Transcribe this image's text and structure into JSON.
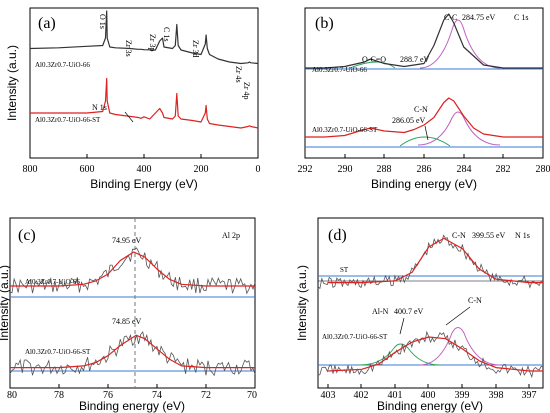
{
  "chart_data": [
    {
      "type": "line",
      "panel_label": "(a)",
      "xlabel": "Binding Energy (eV)",
      "ylabel": "Intensity (a.u.)",
      "xlim": [
        800,
        0
      ],
      "x_ticks": [
        "800",
        "600",
        "400",
        "200",
        "0"
      ],
      "series": [
        {
          "name": "Al0.3Zr0.7-UiO-66",
          "color": "#333333",
          "x": [
            800,
            700,
            600,
            545,
            535,
            531,
            529,
            520,
            500,
            450,
            420,
            410,
            400,
            360,
            345,
            335,
            330,
            300,
            290,
            285,
            280,
            270,
            230,
            200,
            185,
            182,
            178,
            170,
            140,
            100,
            60,
            35,
            30,
            25,
            0
          ],
          "y": [
            0.73,
            0.735,
            0.745,
            0.75,
            0.8,
            0.98,
            0.8,
            0.74,
            0.735,
            0.73,
            0.725,
            0.725,
            0.722,
            0.72,
            0.78,
            0.8,
            0.74,
            0.73,
            0.75,
            0.89,
            0.75,
            0.72,
            0.7,
            0.69,
            0.76,
            0.82,
            0.73,
            0.69,
            0.66,
            0.64,
            0.63,
            0.635,
            0.64,
            0.635,
            0.63
          ]
        },
        {
          "name": "Al0.3Zr0.7-UiO-66-ST",
          "color": "#dd2222",
          "x": [
            800,
            700,
            600,
            545,
            535,
            531,
            529,
            520,
            500,
            420,
            410,
            400,
            380,
            345,
            335,
            330,
            300,
            290,
            285,
            280,
            270,
            230,
            200,
            185,
            182,
            178,
            170,
            140,
            100,
            60,
            35,
            30,
            25,
            0
          ],
          "y": [
            0.3,
            0.3,
            0.3,
            0.31,
            0.38,
            0.53,
            0.38,
            0.3,
            0.29,
            0.27,
            0.265,
            0.275,
            0.26,
            0.33,
            0.3,
            0.27,
            0.26,
            0.28,
            0.43,
            0.28,
            0.26,
            0.25,
            0.24,
            0.3,
            0.35,
            0.26,
            0.23,
            0.22,
            0.21,
            0.2,
            0.21,
            0.215,
            0.21,
            0.2
          ]
        }
      ],
      "annotations": [
        "O 1s",
        "Zr 3s",
        "Zr 3p",
        "C 1s",
        "Zr 3d",
        "Zr 4s",
        "Zr 4p",
        "N 1s"
      ]
    },
    {
      "type": "line",
      "panel_label": "(b)",
      "element_label": "C 1s",
      "xlabel": "Binding energy (eV)",
      "ylabel": "",
      "xlim": [
        292,
        280
      ],
      "x_ticks": [
        "292",
        "290",
        "288",
        "286",
        "284",
        "282",
        "280"
      ],
      "sample_labels": [
        "Al0.3Zr0.7-UiO-66",
        "Al0.3Zr0.7-UiO-66-ST"
      ],
      "peaks": [
        {
          "label": "C-C",
          "value": "284.75 eV"
        },
        {
          "label": "O-C=O",
          "value": "288.7 eV"
        },
        {
          "label": "C-N",
          "value": "286.05 eV"
        }
      ],
      "series": [
        {
          "color": "#333333",
          "x": [
            292,
            291,
            290,
            289,
            288.7,
            288,
            287,
            286,
            285.5,
            285,
            284.75,
            284.5,
            284,
            283,
            282,
            281,
            280
          ],
          "y": [
            0.6,
            0.6,
            0.61,
            0.64,
            0.66,
            0.63,
            0.61,
            0.63,
            0.75,
            0.92,
            0.96,
            0.9,
            0.74,
            0.62,
            0.6,
            0.6,
            0.6
          ]
        },
        {
          "color": "#dd2222",
          "x": [
            292,
            291,
            290,
            289,
            288.7,
            288,
            287,
            286.5,
            286,
            285.5,
            285,
            284.75,
            284.5,
            284,
            283.5,
            283,
            282,
            281,
            280
          ],
          "y": [
            0.14,
            0.14,
            0.15,
            0.19,
            0.2,
            0.18,
            0.17,
            0.19,
            0.22,
            0.27,
            0.37,
            0.4,
            0.38,
            0.28,
            0.2,
            0.16,
            0.14,
            0.14,
            0.14
          ]
        }
      ]
    },
    {
      "type": "line",
      "panel_label": "(c)",
      "element_label": "Al 2p",
      "xlabel": "Binding energy (eV)",
      "ylabel": "Intensity (a.u.)",
      "xlim": [
        80,
        70
      ],
      "x_ticks": [
        "80",
        "78",
        "76",
        "74",
        "72",
        "70"
      ],
      "sample_labels": [
        "Al0.3Zr0.7-UiO-66",
        "Al0.3Zr0.7-UiO-66-ST"
      ],
      "peaks": [
        {
          "label": "",
          "value": "74.95 eV"
        },
        {
          "label": "",
          "value": "74.85 eV"
        }
      ],
      "series": [
        {
          "color": "#dd2222",
          "x": [
            80,
            78,
            77,
            76.5,
            76,
            75.5,
            74.95,
            74.5,
            74,
            73.5,
            73,
            72,
            70
          ],
          "y": [
            0.6,
            0.6,
            0.61,
            0.63,
            0.67,
            0.75,
            0.8,
            0.77,
            0.7,
            0.64,
            0.61,
            0.6,
            0.6
          ]
        },
        {
          "color": "#dd2222",
          "x": [
            80,
            78,
            77,
            76.5,
            76,
            75.5,
            74.85,
            74.5,
            74,
            73.5,
            73,
            72,
            70
          ],
          "y": [
            0.12,
            0.12,
            0.13,
            0.15,
            0.19,
            0.25,
            0.31,
            0.29,
            0.23,
            0.17,
            0.13,
            0.12,
            0.12
          ]
        }
      ]
    },
    {
      "type": "line",
      "panel_label": "(d)",
      "element_label": "N 1s",
      "xlabel": "Binding energy (eV)",
      "ylabel": "Intensity (a.u.)",
      "xlim": [
        403.3,
        396.6
      ],
      "x_ticks": [
        "403",
        "402",
        "401",
        "400",
        "399",
        "398",
        "397"
      ],
      "sample_labels": [
        "ST",
        "Al0.3Zr0.7-UiO-66-ST"
      ],
      "peaks": [
        {
          "label": "C-N",
          "value": "399.55 eV"
        },
        {
          "label": "Al-N",
          "value": "400.7 eV"
        },
        {
          "label": "C-N",
          "value": ""
        }
      ],
      "series": [
        {
          "color": "#dd2222",
          "x": [
            403,
            402,
            401,
            400.5,
            400,
            399.55,
            399,
            398.5,
            398,
            397,
            396.6
          ],
          "y": [
            0.62,
            0.62,
            0.63,
            0.68,
            0.83,
            0.88,
            0.82,
            0.7,
            0.64,
            0.62,
            0.62
          ]
        },
        {
          "color": "#dd2222",
          "x": [
            403,
            402,
            401.5,
            401,
            400.5,
            400,
            399.5,
            399,
            398.5,
            398,
            397,
            396.6
          ],
          "y": [
            0.1,
            0.11,
            0.14,
            0.21,
            0.27,
            0.3,
            0.29,
            0.23,
            0.16,
            0.12,
            0.1,
            0.1
          ]
        }
      ]
    }
  ]
}
